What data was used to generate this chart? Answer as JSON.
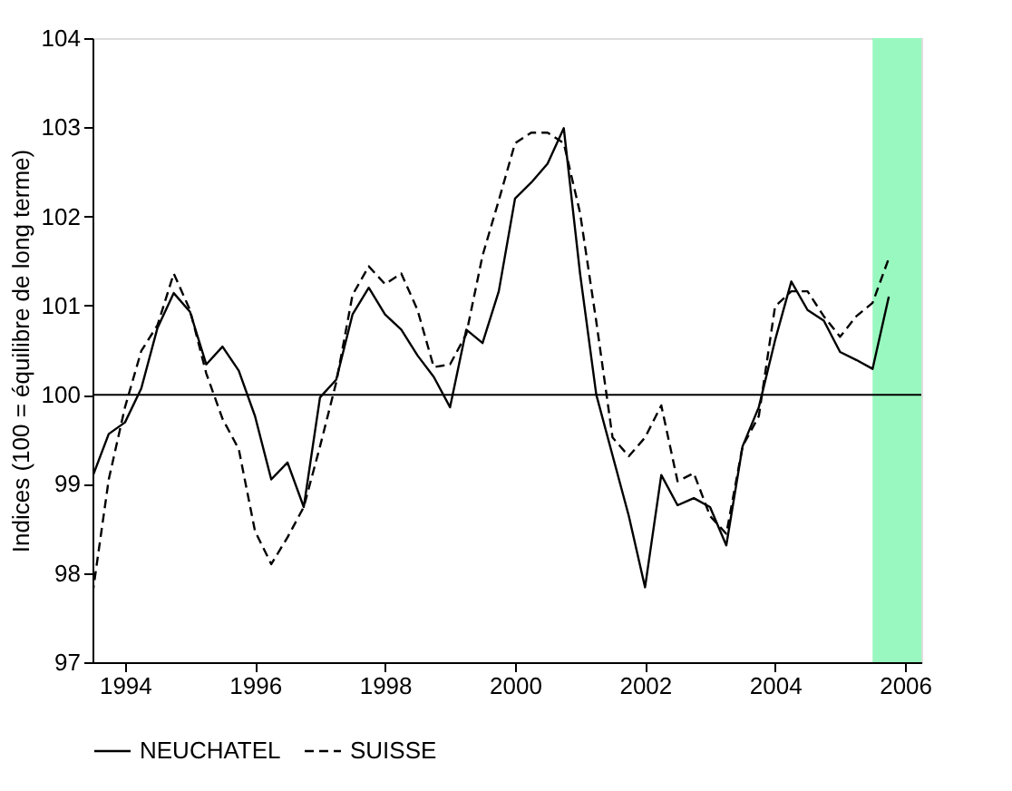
{
  "chart_data": {
    "type": "line",
    "ylabel": "Indices (100 = équilibre de long terme)",
    "x": [
      1994.0,
      1994.25,
      1994.5,
      1994.75,
      1995.0,
      1995.25,
      1995.5,
      1995.75,
      1996.0,
      1996.25,
      1996.5,
      1996.75,
      1997.0,
      1997.25,
      1997.5,
      1997.75,
      1998.0,
      1998.25,
      1998.5,
      1998.75,
      1999.0,
      1999.25,
      1999.5,
      1999.75,
      2000.0,
      2000.25,
      2000.5,
      2000.75,
      2001.0,
      2001.25,
      2001.5,
      2001.75,
      2002.0,
      2002.25,
      2002.5,
      2002.75,
      2003.0,
      2003.25,
      2003.5,
      2003.75,
      2004.0,
      2004.25,
      2004.5,
      2004.75,
      2005.0,
      2005.25,
      2005.5,
      2005.75,
      2006.0,
      2006.25
    ],
    "series": [
      {
        "name": "NEUCHATEL",
        "color": "#000000",
        "line_style": "solid",
        "values": [
          99.08,
          99.56,
          99.69,
          100.07,
          100.75,
          101.14,
          100.93,
          100.34,
          100.54,
          100.27,
          99.76,
          99.05,
          99.24,
          98.74,
          99.97,
          100.17,
          100.9,
          101.2,
          100.9,
          100.73,
          100.44,
          100.2,
          99.86,
          100.73,
          100.58,
          101.16,
          102.2,
          102.38,
          102.59,
          102.99,
          101.36,
          100.0,
          99.32,
          98.64,
          97.84,
          99.1,
          98.76,
          98.84,
          98.74,
          98.31,
          99.42,
          99.86,
          100.61,
          101.27,
          100.95,
          100.83,
          100.48,
          100.39,
          100.29,
          101.1
        ]
      },
      {
        "name": "SUISSE",
        "color": "#000000",
        "line_style": "dashed",
        "values": [
          97.76,
          99.05,
          99.86,
          100.49,
          100.78,
          101.36,
          100.95,
          100.24,
          99.73,
          99.39,
          98.47,
          98.1,
          98.4,
          98.74,
          99.42,
          100.14,
          101.12,
          101.44,
          101.24,
          101.36,
          100.95,
          100.31,
          100.34,
          100.68,
          101.56,
          102.18,
          102.82,
          102.94,
          102.94,
          102.82,
          102.04,
          100.82,
          99.52,
          99.31,
          99.52,
          99.88,
          99.03,
          99.12,
          98.64,
          98.44,
          99.42,
          99.76,
          100.99,
          101.16,
          101.16,
          100.88,
          100.65,
          100.88,
          101.03,
          101.53
        ]
      }
    ],
    "xlim": [
      1994,
      2006.75
    ],
    "xticks": [
      {
        "value": 1994.5,
        "label": "1994"
      },
      {
        "value": 1996.5,
        "label": "1996"
      },
      {
        "value": 1998.5,
        "label": "1998"
      },
      {
        "value": 2000.5,
        "label": "2000"
      },
      {
        "value": 2002.5,
        "label": "2002"
      },
      {
        "value": 2004.5,
        "label": "2004"
      },
      {
        "value": 2006.5,
        "label": "2006"
      }
    ],
    "ylim": [
      97,
      104
    ],
    "yticks": [
      97,
      98,
      99,
      100,
      101,
      102,
      103,
      104
    ],
    "ref_lines": [
      {
        "axis": "y",
        "value": 100,
        "color": "#000000"
      }
    ],
    "bands": [
      {
        "axis": "x",
        "from": 2006.0,
        "to": 2006.75,
        "color": "#99f8bf"
      }
    ],
    "grid": false,
    "legend": "bottom",
    "marker": "none"
  }
}
